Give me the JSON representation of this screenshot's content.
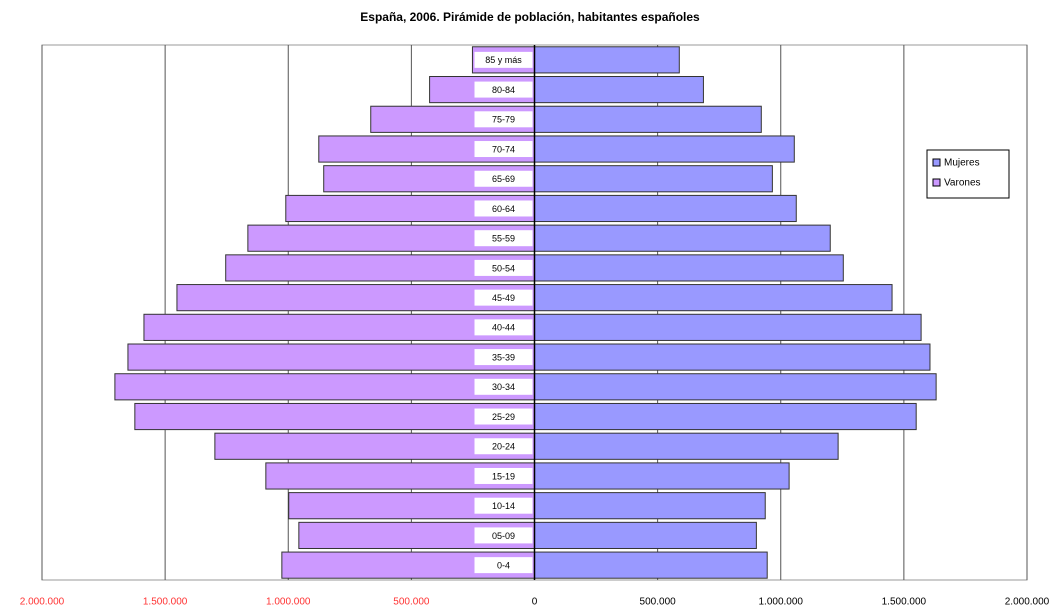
{
  "chart_data": {
    "type": "bar",
    "orientation": "horizontal",
    "title": "España, 2006. Pirámide de población, habitantes españoles",
    "categories": [
      "0-4",
      "05-09",
      "10-14",
      "15-19",
      "20-24",
      "25-29",
      "30-34",
      "35-39",
      "40-44",
      "45-49",
      "50-54",
      "55-59",
      "60-64",
      "65-69",
      "70-74",
      "75-79",
      "80-84",
      "85 y más"
    ],
    "series": [
      {
        "name": "Mujeres",
        "color": "#9999ff",
        "values": [
          945000,
          901000,
          937000,
          1034000,
          1233000,
          1550000,
          1631000,
          1606000,
          1570000,
          1452000,
          1254000,
          1201000,
          1063000,
          966000,
          1055000,
          921000,
          686000,
          588000
        ]
      },
      {
        "name": "Varones",
        "color": "#cc99ff",
        "values": [
          -1026000,
          -957000,
          -998000,
          -1091000,
          -1298000,
          -1623000,
          -1704000,
          -1651000,
          -1586000,
          -1452000,
          -1254000,
          -1164000,
          -1010000,
          -856000,
          -876000,
          -665000,
          -426000,
          -252000
        ]
      }
    ],
    "xlim": [
      -2000000,
      2000000
    ],
    "xticks": [
      {
        "value": -2000000,
        "label": "2.000.000"
      },
      {
        "value": -1500000,
        "label": "1.500.000"
      },
      {
        "value": -1000000,
        "label": "1.000.000"
      },
      {
        "value": -500000,
        "label": "500.000"
      },
      0,
      {
        "value": 500000,
        "label": "500.000"
      },
      {
        "value": 1000000,
        "label": "1.000.000"
      },
      {
        "value": 1500000,
        "label": "1.500.000"
      },
      {
        "value": 2000000,
        "label": "2.000.000"
      }
    ],
    "grid": true,
    "legend": "right"
  }
}
